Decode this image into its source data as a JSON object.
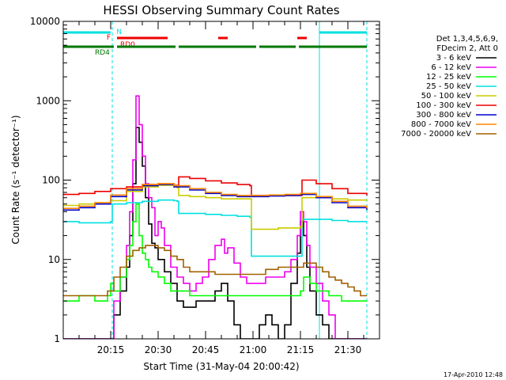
{
  "chart_data": {
    "type": "line",
    "title": "HESSI Observing Summary Count Rates",
    "xlabel": "Start Time (31-May-04 20:00:42)",
    "ylabel": "Count Rate (s⁻¹ detector⁻¹)",
    "y_scale": "log",
    "ylim": [
      1,
      10000
    ],
    "xlim_minutes": [
      0,
      100
    ],
    "x_ticks": [
      {
        "value": 15,
        "label": "20:15"
      },
      {
        "value": 30,
        "label": "20:30"
      },
      {
        "value": 45,
        "label": "20:45"
      },
      {
        "value": 60,
        "label": "21:00"
      },
      {
        "value": 75,
        "label": "21:15"
      },
      {
        "value": 90,
        "label": "21:30"
      }
    ],
    "y_ticks": [
      {
        "value": 1,
        "label": "1"
      },
      {
        "value": 10,
        "label": "10"
      },
      {
        "value": 100,
        "label": "100"
      },
      {
        "value": 1000,
        "label": "1000"
      },
      {
        "value": 10000,
        "label": "10000"
      }
    ],
    "legend": {
      "position": "right",
      "header": [
        "Det 1,3,4,5,6,9,",
        "FDecim 2, Att 0"
      ]
    },
    "series": [
      {
        "name": "3 - 6 keV",
        "color": "#000000",
        "x": [
          0,
          5,
          10,
          14,
          16,
          18,
          20,
          21,
          22,
          23,
          24,
          25,
          26,
          27,
          28,
          29,
          30,
          32,
          34,
          36,
          38,
          40,
          42,
          44,
          46,
          48,
          50,
          52,
          54,
          56,
          58,
          60,
          62,
          64,
          66,
          68,
          70,
          72,
          74,
          75,
          76,
          77,
          78,
          80,
          82,
          84,
          86,
          88,
          90,
          92,
          94,
          96
        ],
        "y": [
          1,
          1,
          1,
          1,
          2,
          4,
          8,
          20,
          90,
          460,
          300,
          150,
          60,
          28,
          16,
          14,
          10,
          7,
          5,
          3,
          2.5,
          2.5,
          3,
          3,
          3,
          4,
          5,
          3,
          1.5,
          1,
          1,
          1,
          1.5,
          2,
          1.5,
          1,
          1.5,
          5,
          12,
          30,
          20,
          8,
          4,
          2,
          1.5,
          1,
          1,
          1,
          1,
          1,
          1,
          1
        ]
      },
      {
        "name": "6 - 12 keV",
        "color": "#ee00ee",
        "x": [
          0,
          5,
          10,
          12,
          14,
          16,
          18,
          20,
          21,
          22,
          23,
          24,
          25,
          26,
          27,
          28,
          29,
          30,
          31,
          32,
          34,
          36,
          38,
          40,
          42,
          44,
          46,
          48,
          50,
          51,
          52,
          54,
          56,
          58,
          60,
          62,
          64,
          66,
          68,
          70,
          72,
          74,
          75,
          76,
          77,
          78,
          80,
          82,
          84,
          86,
          88,
          90,
          92,
          94,
          96
        ],
        "y": [
          1,
          1,
          1,
          1,
          1,
          3,
          6,
          15,
          40,
          180,
          1150,
          500,
          200,
          90,
          60,
          45,
          20,
          30,
          25,
          15,
          8,
          6,
          5,
          4,
          5,
          6,
          10,
          15,
          18,
          12,
          14,
          9,
          6,
          5,
          5,
          5,
          6,
          6,
          6,
          7,
          10,
          20,
          40,
          30,
          15,
          8,
          5,
          3,
          2,
          1,
          1,
          1,
          1,
          1,
          1
        ]
      },
      {
        "name": "12 - 25 keV",
        "color": "#00ff00",
        "x": [
          0,
          5,
          10,
          14,
          15,
          16,
          18,
          20,
          21,
          22,
          23,
          24,
          25,
          26,
          27,
          28,
          30,
          32,
          34,
          36,
          38,
          40,
          44,
          48,
          52,
          56,
          60,
          64,
          68,
          72,
          75,
          76,
          78,
          80,
          84,
          88,
          92,
          96
        ],
        "y": [
          3,
          3.5,
          3,
          3.5,
          5,
          4,
          6,
          10,
          15,
          30,
          50,
          20,
          12,
          10,
          8,
          7,
          6,
          5,
          4,
          4,
          4,
          3.5,
          3.5,
          3.5,
          3.5,
          3.5,
          3.5,
          3.5,
          3.5,
          3.5,
          4,
          6,
          5,
          4,
          3.5,
          3,
          3,
          3
        ]
      },
      {
        "name": "25 - 50 keV",
        "color": "#00e0e0",
        "x": [
          0,
          5,
          10,
          15,
          15.5,
          20,
          25,
          30,
          35,
          36,
          36.5,
          40,
          45,
          50,
          55,
          59,
          59.5,
          62,
          68,
          72,
          75,
          75.5,
          80,
          85,
          90,
          96
        ],
        "y": [
          30,
          29,
          29,
          30,
          50,
          52,
          54,
          56,
          55,
          54,
          38,
          38,
          37,
          36,
          35,
          34,
          11,
          11,
          11,
          11,
          11,
          32,
          32,
          31,
          30,
          30
        ]
      },
      {
        "name": "50 - 100 keV",
        "color": "#cccc00",
        "x": [
          0,
          5,
          10,
          15,
          15.5,
          20,
          25,
          30,
          35,
          36,
          36.5,
          40,
          45,
          50,
          55,
          59,
          59.5,
          62,
          68,
          72,
          75,
          75.5,
          80,
          85,
          90,
          96
        ],
        "y": [
          48,
          50,
          52,
          55,
          55,
          72,
          82,
          86,
          84,
          80,
          64,
          62,
          60,
          58,
          58,
          58,
          24,
          24,
          25,
          25,
          26,
          60,
          60,
          58,
          56,
          55
        ]
      },
      {
        "name": "100 - 300 keV",
        "color": "#ee0000",
        "x": [
          0,
          5,
          10,
          15,
          15.5,
          20,
          25,
          30,
          35,
          36,
          36.5,
          40,
          45,
          50,
          55,
          59,
          59.5,
          62,
          68,
          72,
          75,
          75.5,
          80,
          85,
          90,
          96
        ],
        "y": [
          66,
          68,
          72,
          78,
          78,
          82,
          88,
          90,
          86,
          86,
          110,
          105,
          98,
          92,
          88,
          85,
          64,
          64,
          64,
          64,
          64,
          100,
          90,
          78,
          68,
          64
        ]
      },
      {
        "name": "300 - 800 keV",
        "color": "#0000cc",
        "x": [
          0,
          5,
          10,
          15,
          20,
          25,
          30,
          35,
          40,
          45,
          50,
          55,
          60,
          65,
          70,
          75,
          80,
          85,
          90,
          96
        ],
        "y": [
          42,
          45,
          50,
          62,
          75,
          85,
          88,
          82,
          75,
          68,
          64,
          62,
          62,
          63,
          64,
          66,
          60,
          52,
          45,
          42
        ]
      },
      {
        "name": "800 - 7000 keV",
        "color": "#ff8800",
        "x": [
          0,
          5,
          10,
          15,
          20,
          25,
          30,
          35,
          40,
          45,
          50,
          55,
          60,
          65,
          70,
          75,
          80,
          85,
          90,
          96
        ],
        "y": [
          44,
          47,
          52,
          65,
          78,
          88,
          90,
          85,
          78,
          70,
          66,
          64,
          64,
          65,
          66,
          68,
          62,
          54,
          47,
          44
        ]
      },
      {
        "name": "7000 - 20000 keV",
        "color": "#a06000",
        "x": [
          0,
          5,
          10,
          14,
          16,
          18,
          20,
          22,
          24,
          26,
          28,
          30,
          32,
          34,
          36,
          38,
          40,
          44,
          48,
          52,
          56,
          60,
          64,
          68,
          72,
          75,
          76,
          78,
          80,
          82,
          84,
          86,
          88,
          90,
          92,
          94,
          96
        ],
        "y": [
          3.5,
          3.5,
          3.5,
          4,
          6,
          8,
          11,
          13,
          14,
          15,
          15,
          14,
          13,
          11,
          10,
          8,
          7,
          7,
          6.5,
          6.5,
          6.5,
          6.5,
          7.5,
          8,
          8,
          8,
          9,
          9,
          8,
          7,
          6,
          5.5,
          5,
          4.5,
          4,
          3.5,
          3.5
        ]
      }
    ],
    "flags": [
      {
        "label": "N",
        "color": "#00e0e0",
        "label_x": 16.8,
        "segments": [
          [
            0,
            15
          ],
          [
            81,
            96
          ]
        ]
      },
      {
        "label": "F",
        "color": "#ee0000",
        "label_x": 15,
        "segments": [
          [
            17,
            33
          ],
          [
            49,
            52
          ],
          [
            74,
            77
          ]
        ]
      },
      {
        "label": "RD0",
        "color": "#ee0000",
        "label_x": 18,
        "segments": []
      },
      {
        "label": "RD4",
        "color": "#007700",
        "label_x": 10,
        "segments": [
          [
            0,
            16
          ],
          [
            17,
            35.5
          ],
          [
            36.5,
            61
          ],
          [
            62,
            73.5
          ],
          [
            74.5,
            96
          ]
        ]
      }
    ],
    "vertical_markers": [
      {
        "x": 0,
        "color": "#00e0e0",
        "style": "solid"
      },
      {
        "x": 15.5,
        "color": "#00e0e0",
        "style": "dashed"
      },
      {
        "x": 81,
        "color": "#00e0e0",
        "style": "solid"
      },
      {
        "x": 96,
        "color": "#00e0e0",
        "style": "dashed"
      }
    ]
  },
  "footer": {
    "timestamp": "17-Apr-2010 12:48"
  }
}
